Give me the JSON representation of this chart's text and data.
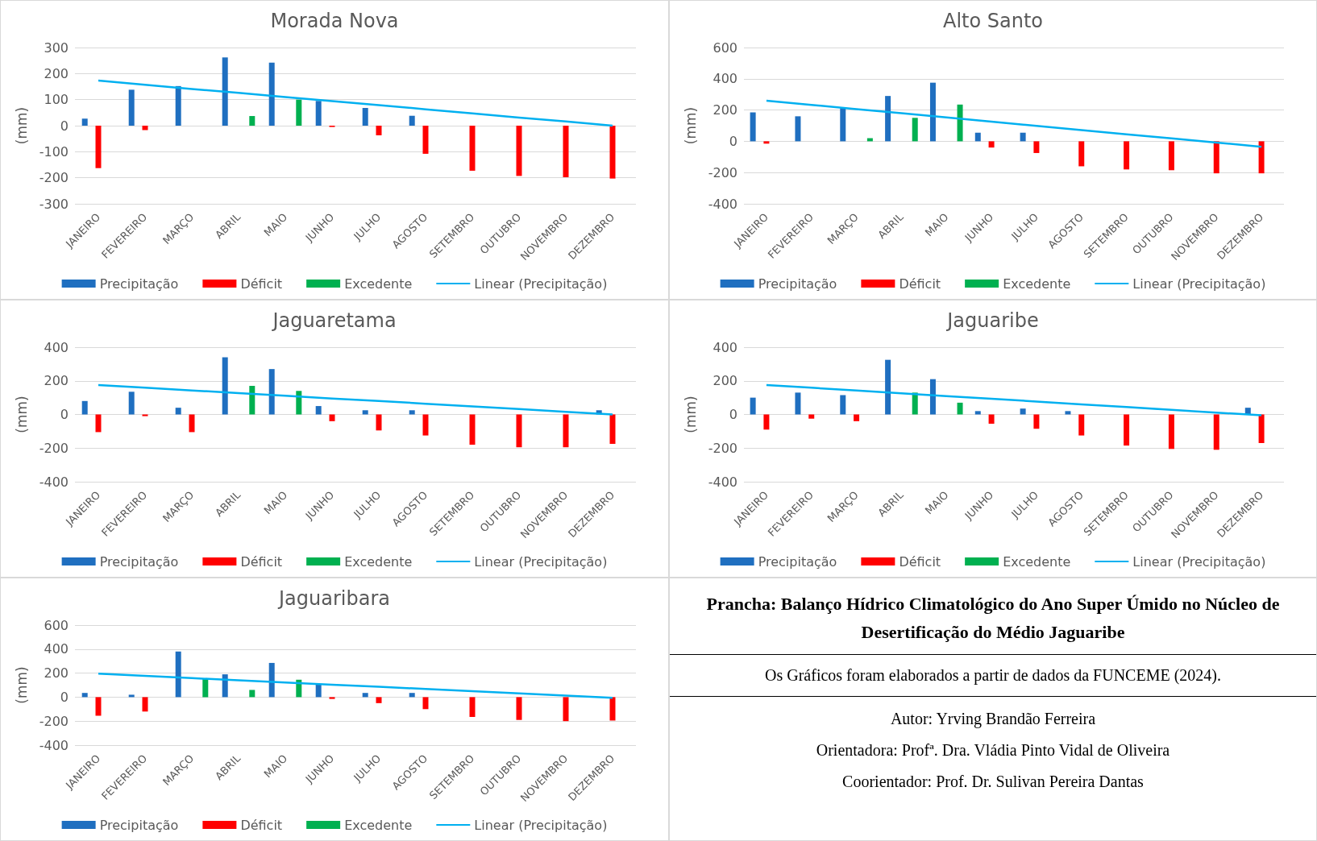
{
  "chart_data": [
    {
      "type": "bar",
      "title": "Morada Nova",
      "ylabel": "(mm)",
      "categories": [
        "JANEIRO",
        "FEVEREIRO",
        "MARÇO",
        "ABRIL",
        "MAIO",
        "JUNHO",
        "JULHO",
        "AGOSTO",
        "SETEMBRO",
        "OUTUBRO",
        "NOVEMBRO",
        "DEZEMBRO"
      ],
      "series": [
        {
          "name": "Precipitação",
          "color": "#1f6fc0",
          "values": [
            27,
            138,
            152,
            262,
            242,
            95,
            68,
            38,
            0,
            0,
            0,
            0
          ]
        },
        {
          "name": "Déficit",
          "color": "#ff0000",
          "values": [
            -163,
            -17,
            0,
            0,
            0,
            -5,
            -37,
            -108,
            -173,
            -193,
            -198,
            -203
          ]
        },
        {
          "name": "Excedente",
          "color": "#00b050",
          "values": [
            0,
            0,
            0,
            37,
            100,
            0,
            0,
            0,
            0,
            0,
            0,
            0
          ]
        },
        {
          "name": "Linear (Precipitação)",
          "type": "line",
          "color": "#00b0f0",
          "values": [
            173,
            157,
            141,
            126,
            110,
            94,
            79,
            63,
            47,
            31,
            16,
            0
          ]
        }
      ],
      "ylim": [
        -300,
        300
      ],
      "yticks": [
        -300,
        -200,
        -100,
        0,
        100,
        200,
        300
      ],
      "grid": "y",
      "legend": "bottom",
      "marker": "none"
    },
    {
      "type": "bar",
      "title": "Alto Santo",
      "ylabel": "(mm)",
      "categories": [
        "JANEIRO",
        "FEVEREIRO",
        "MARÇO",
        "ABRIL",
        "MAIO",
        "JUNHO",
        "JULHO",
        "AGOSTO",
        "SETEMBRO",
        "OUTUBRO",
        "NOVEMBRO",
        "DEZEMBRO"
      ],
      "series": [
        {
          "name": "Precipitação",
          "color": "#1f6fc0",
          "values": [
            185,
            160,
            215,
            290,
            375,
            55,
            55,
            0,
            0,
            0,
            0,
            0
          ]
        },
        {
          "name": "Déficit",
          "color": "#ff0000",
          "values": [
            -15,
            0,
            0,
            0,
            0,
            -40,
            -75,
            -160,
            -180,
            -185,
            -205,
            -205
          ]
        },
        {
          "name": "Excedente",
          "color": "#00b050",
          "values": [
            0,
            0,
            20,
            150,
            235,
            0,
            0,
            0,
            0,
            0,
            0,
            0
          ]
        },
        {
          "name": "Linear (Precipitação)",
          "type": "line",
          "color": "#00b0f0",
          "values": [
            260,
            233,
            206,
            180,
            153,
            126,
            99,
            72,
            45,
            19,
            -8,
            -35
          ]
        }
      ],
      "ylim": [
        -400,
        600
      ],
      "yticks": [
        -400,
        -200,
        0,
        200,
        400,
        600
      ],
      "grid": "y",
      "legend": "bottom",
      "marker": "none"
    },
    {
      "type": "bar",
      "title": "Jaguaretama",
      "ylabel": "(mm)",
      "categories": [
        "JANEIRO",
        "FEVEREIRO",
        "MARÇO",
        "ABRIL",
        "MAIO",
        "JUNHO",
        "JULHO",
        "AGOSTO",
        "SETEMBRO",
        "OUTUBRO",
        "NOVEMBRO",
        "DEZEMBRO"
      ],
      "series": [
        {
          "name": "Precipitação",
          "color": "#1f6fc0",
          "values": [
            80,
            135,
            40,
            340,
            270,
            50,
            25,
            25,
            0,
            0,
            0,
            25
          ]
        },
        {
          "name": "Déficit",
          "color": "#ff0000",
          "values": [
            -105,
            -10,
            -105,
            0,
            0,
            -40,
            -95,
            -125,
            -180,
            -195,
            -195,
            -175
          ]
        },
        {
          "name": "Excedente",
          "color": "#00b050",
          "values": [
            0,
            0,
            0,
            170,
            140,
            0,
            0,
            0,
            0,
            0,
            0,
            0
          ]
        },
        {
          "name": "Linear (Precipitação)",
          "type": "line",
          "color": "#00b0f0",
          "values": [
            175,
            159,
            143,
            127,
            111,
            95,
            80,
            64,
            48,
            32,
            16,
            0
          ]
        }
      ],
      "ylim": [
        -400,
        400
      ],
      "yticks": [
        -400,
        -200,
        0,
        200,
        400
      ],
      "grid": "y",
      "legend": "bottom",
      "marker": "none"
    },
    {
      "type": "bar",
      "title": "Jaguaribe",
      "ylabel": "(mm)",
      "categories": [
        "JANEIRO",
        "FEVEREIRO",
        "MARÇO",
        "ABRIL",
        "MAIO",
        "JUNHO",
        "JULHO",
        "AGOSTO",
        "SETEMBRO",
        "OUTUBRO",
        "NOVEMBRO",
        "DEZEMBRO"
      ],
      "series": [
        {
          "name": "Precipitação",
          "color": "#1f6fc0",
          "values": [
            100,
            130,
            115,
            325,
            210,
            20,
            35,
            20,
            0,
            0,
            0,
            40
          ]
        },
        {
          "name": "Déficit",
          "color": "#ff0000",
          "values": [
            -90,
            -25,
            -40,
            0,
            0,
            -55,
            -85,
            -125,
            -185,
            -205,
            -210,
            -170
          ]
        },
        {
          "name": "Excedente",
          "color": "#00b050",
          "values": [
            0,
            0,
            0,
            130,
            70,
            0,
            0,
            0,
            0,
            0,
            0,
            0
          ]
        },
        {
          "name": "Linear (Precipitação)",
          "type": "line",
          "color": "#00b0f0",
          "values": [
            175,
            159,
            142,
            126,
            109,
            93,
            77,
            60,
            44,
            27,
            11,
            -5
          ]
        }
      ],
      "ylim": [
        -400,
        400
      ],
      "yticks": [
        -400,
        -200,
        0,
        200,
        400
      ],
      "grid": "y",
      "legend": "bottom",
      "marker": "none"
    },
    {
      "type": "bar",
      "title": "Jaguaribara",
      "ylabel": "(mm)",
      "categories": [
        "JANEIRO",
        "FEVEREIRO",
        "MARÇO",
        "ABRIL",
        "MAIO",
        "JUNHO",
        "JULHO",
        "AGOSTO",
        "SETEMBRO",
        "OUTUBRO",
        "NOVEMBRO",
        "DEZEMBRO"
      ],
      "series": [
        {
          "name": "Precipitação",
          "color": "#1f6fc0",
          "values": [
            35,
            20,
            380,
            190,
            285,
            105,
            35,
            35,
            0,
            0,
            0,
            0
          ]
        },
        {
          "name": "Déficit",
          "color": "#ff0000",
          "values": [
            -155,
            -120,
            0,
            0,
            0,
            -15,
            -50,
            -100,
            -165,
            -190,
            -200,
            -195
          ]
        },
        {
          "name": "Excedente",
          "color": "#00b050",
          "values": [
            0,
            0,
            150,
            60,
            145,
            0,
            0,
            0,
            0,
            0,
            0,
            0
          ]
        },
        {
          "name": "Linear (Precipitação)",
          "type": "line",
          "color": "#00b0f0",
          "values": [
            195,
            177,
            158,
            140,
            122,
            104,
            86,
            68,
            50,
            32,
            13,
            -5
          ]
        }
      ],
      "ylim": [
        -400,
        600
      ],
      "yticks": [
        -400,
        -200,
        0,
        200,
        400,
        600
      ],
      "grid": "y",
      "legend": "bottom",
      "marker": "none"
    },
    {
      "type": "other",
      "title": "Prancha: Balanço Hídrico Climatológico do Ano Super Úmido no Núcleo de Desertificação do Médio Jaguaribe",
      "annotations": [
        "Os Gráficos foram elaborados a partir de dados da FUNCEME (2024).",
        "Autor: Yrving Brandão Ferreira",
        "Orientadora: Profª. Dra. Vládia Pinto Vidal de Oliveira",
        "Coorientador: Prof. Dr. Sulivan Pereira Dantas"
      ]
    }
  ]
}
